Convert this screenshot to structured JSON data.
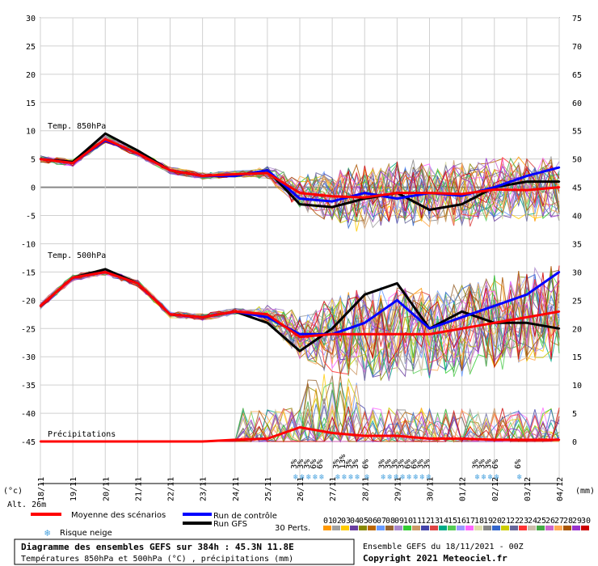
{
  "chart_data": {
    "type": "line",
    "x": [
      "18/11",
      "19/11",
      "20/11",
      "21/11",
      "22/11",
      "23/11",
      "24/11",
      "25/11",
      "26/11",
      "27/11",
      "28/11",
      "29/11",
      "30/11",
      "01/12",
      "02/12",
      "03/12",
      "04/12"
    ],
    "y_left_ticks": [
      30,
      25,
      20,
      15,
      10,
      5,
      0,
      -5,
      -10,
      -15,
      -20,
      -25,
      -30,
      -35,
      -40,
      -45
    ],
    "y_right_ticks": [
      75,
      70,
      65,
      60,
      55,
      50,
      45,
      40,
      35,
      30,
      25,
      20,
      15,
      10,
      5,
      0
    ],
    "y_left_unit": "(°c)",
    "y_right_unit": "(mm)",
    "ylim_left": [
      -45,
      30
    ],
    "ylim_right": [
      0,
      75
    ],
    "altitude": "Alt. 26m",
    "panel_labels": {
      "t850": "Temp. 850hPa",
      "t500": "Temp. 500hPa",
      "precip": "Précipitations"
    },
    "series": [
      {
        "name": "Moyenne des scénarios",
        "group": "t850",
        "color": "#ff0000",
        "values": [
          5,
          4.3,
          8.5,
          6,
          3,
          2,
          2.3,
          2.5,
          -1,
          -1.6,
          -1.8,
          -1,
          -1,
          -1.2,
          -0.4,
          -0.5,
          0
        ]
      },
      {
        "name": "Run de contrôle",
        "group": "t850",
        "color": "#0000ff",
        "values": [
          5,
          4.3,
          8.3,
          6,
          3,
          2,
          2,
          3,
          -2,
          -2.5,
          -1,
          -2,
          -1,
          -1.5,
          0,
          2,
          3.5
        ]
      },
      {
        "name": "Run GFS",
        "group": "t850",
        "color": "#000000",
        "values": [
          5,
          4.5,
          9.5,
          6.5,
          3,
          2,
          2,
          3,
          -3,
          -3.5,
          -2,
          -1,
          -4,
          -3,
          0,
          1,
          1
        ]
      },
      {
        "name": "Moyenne des scénarios",
        "group": "t500",
        "color": "#ff0000",
        "values": [
          -21,
          -16,
          -15,
          -17,
          -22.5,
          -23,
          -22,
          -22.5,
          -26.5,
          -26,
          -26,
          -26,
          -26,
          -25,
          -24,
          -23,
          -22
        ]
      },
      {
        "name": "Run de contrôle",
        "group": "t500",
        "color": "#0000ff",
        "values": [
          -21,
          -16,
          -15,
          -17,
          -22.5,
          -23,
          -22,
          -23,
          -26,
          -26,
          -24,
          -20,
          -25,
          -23,
          -21,
          -19,
          -15
        ]
      },
      {
        "name": "Run GFS",
        "group": "t500",
        "color": "#000000",
        "values": [
          -21,
          -16,
          -14.5,
          -17,
          -22.5,
          -23,
          -22,
          -24,
          -29,
          -25,
          -19,
          -17,
          -25,
          -22,
          -24,
          -24,
          -25
        ]
      },
      {
        "name": "Moyenne des scénarios",
        "group": "precip",
        "color": "#ff0000",
        "values": [
          0,
          0,
          0,
          0,
          0,
          0,
          0.3,
          0.5,
          2.5,
          1.5,
          1,
          1,
          0.5,
          0.5,
          0.3,
          0.3,
          0.3
        ]
      }
    ],
    "snow_risk": {
      "labels": [
        "3%",
        "3%",
        "3%",
        "6%",
        "6%",
        "3%",
        "13%",
        "3%",
        "3%",
        "6%",
        "3%",
        "3%",
        "3%",
        "3%",
        "6%",
        "6%",
        "3%",
        "3%",
        "3%",
        "3%",
        "3%",
        "6%",
        "6%"
      ],
      "columns": [
        25.9,
        26.1,
        26.3,
        26.5,
        26.7,
        27.2,
        27.4,
        27.6,
        27.8,
        28.1,
        28.6,
        28.8,
        29.0,
        29.2,
        29.4,
        29.6,
        29.8,
        30.0,
        31.5,
        31.7,
        31.9,
        32.1,
        32.8
      ]
    },
    "legend": {
      "mean": "Moyenne des scénarios",
      "control": "Run de contrôle",
      "gfs": "Run GFS",
      "snow": "Risque neige",
      "perts": "30 Perts."
    },
    "pert_labels": [
      "01",
      "02",
      "03",
      "04",
      "05",
      "06",
      "07",
      "08",
      "09",
      "10",
      "11",
      "12",
      "13",
      "14",
      "15",
      "16",
      "17",
      "18",
      "19",
      "20",
      "21",
      "22",
      "23",
      "24",
      "25",
      "26",
      "27",
      "28",
      "29",
      "30"
    ],
    "pert_colors": [
      "#ff9900",
      "#a0a0a0",
      "#ffcc00",
      "#6b3fa0",
      "#888800",
      "#bb6600",
      "#6699ff",
      "#996633",
      "#aa88cc",
      "#33cc33",
      "#cc9966",
      "#4444aa",
      "#dd4444",
      "#00aa88",
      "#55cc55",
      "#9999ff",
      "#ff66ff",
      "#ddddaa",
      "#888888",
      "#3366cc",
      "#cccc00",
      "#666699",
      "#ff3333",
      "#ccbbaa",
      "#44aa44",
      "#cc66cc",
      "#ffaa55",
      "#aa5500",
      "#9933cc",
      "#cc0000"
    ],
    "footer": {
      "title": "Diagramme des ensembles GEFS sur 384h : 45.3N 11.8E",
      "subtitle": "Températures 850hPa et 500hPa (°C) , précipitations (mm)",
      "run": "Ensemble GEFS du 18/11/2021 - 00Z",
      "copyright": "Copyright 2021 Meteociel.fr"
    }
  }
}
